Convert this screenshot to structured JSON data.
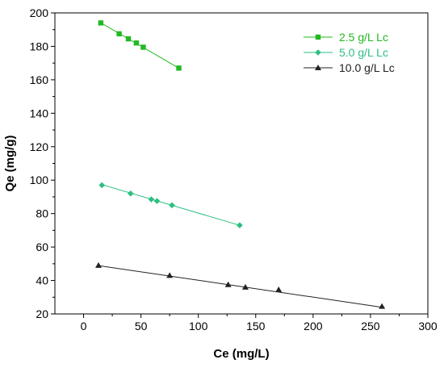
{
  "chart_data": {
    "type": "scatter",
    "xlabel": "Ce (mg/L)",
    "ylabel": "Qe (mg/g)",
    "xlim": [
      -25,
      300
    ],
    "ylim": [
      20,
      200
    ],
    "xticks": [
      0,
      50,
      100,
      150,
      200,
      250,
      300
    ],
    "yticks": [
      20,
      40,
      60,
      80,
      100,
      120,
      140,
      160,
      180,
      200
    ],
    "legend_position": "top-right",
    "series": [
      {
        "name": "2.5 g/L Lc",
        "color": "#22b822",
        "marker": "square",
        "points": [
          [
            15,
            194
          ],
          [
            31,
            187.5
          ],
          [
            39,
            184.5
          ],
          [
            46,
            182
          ],
          [
            52,
            179.5
          ],
          [
            83,
            167
          ]
        ],
        "fit": [
          [
            14,
            194.5
          ],
          [
            83,
            167
          ]
        ]
      },
      {
        "name": "5.0 g/L Lc",
        "color": "#2bbf80",
        "marker": "diamond",
        "points": [
          [
            16,
            97
          ],
          [
            41,
            92
          ],
          [
            59,
            88.5
          ],
          [
            64,
            87.5
          ],
          [
            77,
            85
          ],
          [
            136,
            73
          ]
        ],
        "fit": [
          [
            15,
            97.5
          ],
          [
            136,
            73
          ]
        ]
      },
      {
        "name": "10.0 g/L Lc",
        "color": "#222222",
        "marker": "triangle",
        "points": [
          [
            13,
            49
          ],
          [
            75,
            43
          ],
          [
            126,
            37.5
          ],
          [
            141,
            36
          ],
          [
            170,
            34.5
          ],
          [
            260,
            24.5
          ]
        ],
        "fit": [
          [
            12,
            49
          ],
          [
            260,
            24
          ]
        ]
      }
    ]
  }
}
